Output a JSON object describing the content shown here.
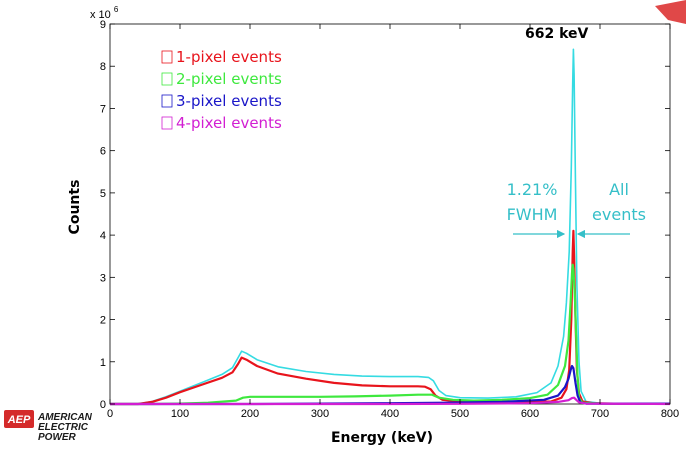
{
  "chart_data": {
    "type": "line",
    "xlabel": "Energy (keV)",
    "ylabel": "Counts",
    "xlim": [
      0,
      800
    ],
    "ylim": [
      0,
      9
    ],
    "y_multiplier_label": "x 10",
    "y_multiplier_exp": "6",
    "x_ticks": [
      0,
      100,
      200,
      300,
      400,
      500,
      600,
      700,
      800
    ],
    "y_ticks": [
      0,
      1,
      2,
      3,
      4,
      5,
      6,
      7,
      8,
      9
    ],
    "grid": false,
    "legend_placement": "top-left",
    "series": [
      {
        "name": "1-pixel events",
        "color": "#e8141c",
        "points": [
          [
            0,
            0
          ],
          [
            40,
            0
          ],
          [
            60,
            0.05
          ],
          [
            80,
            0.15
          ],
          [
            100,
            0.28
          ],
          [
            130,
            0.45
          ],
          [
            160,
            0.62
          ],
          [
            175,
            0.75
          ],
          [
            183,
            0.95
          ],
          [
            188,
            1.1
          ],
          [
            195,
            1.05
          ],
          [
            210,
            0.9
          ],
          [
            240,
            0.72
          ],
          [
            280,
            0.6
          ],
          [
            320,
            0.5
          ],
          [
            360,
            0.44
          ],
          [
            400,
            0.42
          ],
          [
            440,
            0.42
          ],
          [
            450,
            0.41
          ],
          [
            458,
            0.35
          ],
          [
            465,
            0.2
          ],
          [
            475,
            0.1
          ],
          [
            500,
            0.06
          ],
          [
            550,
            0.05
          ],
          [
            600,
            0.05
          ],
          [
            630,
            0.06
          ],
          [
            645,
            0.15
          ],
          [
            652,
            0.35
          ],
          [
            656,
            0.8
          ],
          [
            659,
            2.0
          ],
          [
            661,
            3.6
          ],
          [
            662,
            4.1
          ],
          [
            663,
            3.5
          ],
          [
            665,
            2.0
          ],
          [
            667,
            0.8
          ],
          [
            670,
            0.25
          ],
          [
            675,
            0.06
          ],
          [
            690,
            0.02
          ],
          [
            720,
            0.01
          ],
          [
            800,
            0.01
          ]
        ]
      },
      {
        "name": "2-pixel events",
        "color": "#3ee83e",
        "points": [
          [
            0,
            0
          ],
          [
            60,
            0
          ],
          [
            100,
            0.01
          ],
          [
            140,
            0.03
          ],
          [
            180,
            0.08
          ],
          [
            190,
            0.15
          ],
          [
            200,
            0.17
          ],
          [
            240,
            0.17
          ],
          [
            300,
            0.17
          ],
          [
            350,
            0.18
          ],
          [
            400,
            0.2
          ],
          [
            440,
            0.22
          ],
          [
            460,
            0.22
          ],
          [
            470,
            0.15
          ],
          [
            490,
            0.1
          ],
          [
            520,
            0.08
          ],
          [
            560,
            0.1
          ],
          [
            600,
            0.14
          ],
          [
            625,
            0.22
          ],
          [
            640,
            0.45
          ],
          [
            650,
            0.9
          ],
          [
            655,
            1.5
          ],
          [
            658,
            2.4
          ],
          [
            660,
            3.1
          ],
          [
            661,
            3.3
          ],
          [
            662,
            3.2
          ],
          [
            664,
            2.6
          ],
          [
            666,
            1.6
          ],
          [
            668,
            0.6
          ],
          [
            670,
            0.15
          ],
          [
            675,
            0.03
          ],
          [
            700,
            0.01
          ],
          [
            800,
            0.01
          ]
        ]
      },
      {
        "name": "3-pixel events",
        "color": "#1a16c8",
        "points": [
          [
            0,
            0
          ],
          [
            200,
            0
          ],
          [
            300,
            0.01
          ],
          [
            400,
            0.02
          ],
          [
            480,
            0.03
          ],
          [
            560,
            0.05
          ],
          [
            620,
            0.1
          ],
          [
            640,
            0.2
          ],
          [
            650,
            0.4
          ],
          [
            655,
            0.6
          ],
          [
            658,
            0.8
          ],
          [
            660,
            0.9
          ],
          [
            662,
            0.85
          ],
          [
            665,
            0.5
          ],
          [
            668,
            0.2
          ],
          [
            672,
            0.04
          ],
          [
            680,
            0.01
          ],
          [
            800,
            0.01
          ]
        ]
      },
      {
        "name": "4-pixel events",
        "color": "#d21ed2",
        "points": [
          [
            0,
            0
          ],
          [
            400,
            0
          ],
          [
            500,
            0.005
          ],
          [
            600,
            0.02
          ],
          [
            640,
            0.05
          ],
          [
            655,
            0.09
          ],
          [
            660,
            0.14
          ],
          [
            663,
            0.15
          ],
          [
            666,
            0.1
          ],
          [
            670,
            0.04
          ],
          [
            680,
            0.01
          ],
          [
            800,
            0.0
          ]
        ]
      },
      {
        "name": "All events",
        "color": "#35dbe2",
        "points": [
          [
            0,
            0
          ],
          [
            40,
            0
          ],
          [
            60,
            0.06
          ],
          [
            80,
            0.17
          ],
          [
            100,
            0.3
          ],
          [
            130,
            0.5
          ],
          [
            160,
            0.7
          ],
          [
            175,
            0.86
          ],
          [
            183,
            1.1
          ],
          [
            188,
            1.25
          ],
          [
            195,
            1.2
          ],
          [
            210,
            1.05
          ],
          [
            240,
            0.88
          ],
          [
            280,
            0.77
          ],
          [
            320,
            0.7
          ],
          [
            360,
            0.66
          ],
          [
            400,
            0.65
          ],
          [
            440,
            0.65
          ],
          [
            455,
            0.63
          ],
          [
            462,
            0.55
          ],
          [
            470,
            0.32
          ],
          [
            480,
            0.2
          ],
          [
            500,
            0.15
          ],
          [
            540,
            0.14
          ],
          [
            580,
            0.17
          ],
          [
            610,
            0.27
          ],
          [
            630,
            0.5
          ],
          [
            640,
            0.9
          ],
          [
            648,
            1.6
          ],
          [
            652,
            2.4
          ],
          [
            656,
            3.6
          ],
          [
            659,
            5.6
          ],
          [
            661,
            7.6
          ],
          [
            662,
            8.4
          ],
          [
            663,
            7.8
          ],
          [
            665,
            5.2
          ],
          [
            667,
            2.8
          ],
          [
            670,
            1.0
          ],
          [
            673,
            0.3
          ],
          [
            680,
            0.06
          ],
          [
            700,
            0.02
          ],
          [
            800,
            0.01
          ]
        ]
      }
    ],
    "legend": [
      {
        "label": "1-pixel events",
        "color": "#e8141c"
      },
      {
        "label": "2-pixel events",
        "color": "#3ee83e"
      },
      {
        "label": "3-pixel events",
        "color": "#1a16c8"
      },
      {
        "label": "4-pixel events",
        "color": "#d21ed2"
      }
    ],
    "annotations": {
      "peak_label": "662 keV",
      "fwhm_line1": "1.21%",
      "fwhm_line2": "FWHM",
      "all_line1": "All",
      "all_line2": "events",
      "annotation_color": "#35bfc8"
    }
  },
  "logo": {
    "mark": "AEP",
    "line1": "AMERICAN",
    "line2": "ELECTRIC",
    "line3": "POWER",
    "mark_color": "#d42a2a"
  }
}
